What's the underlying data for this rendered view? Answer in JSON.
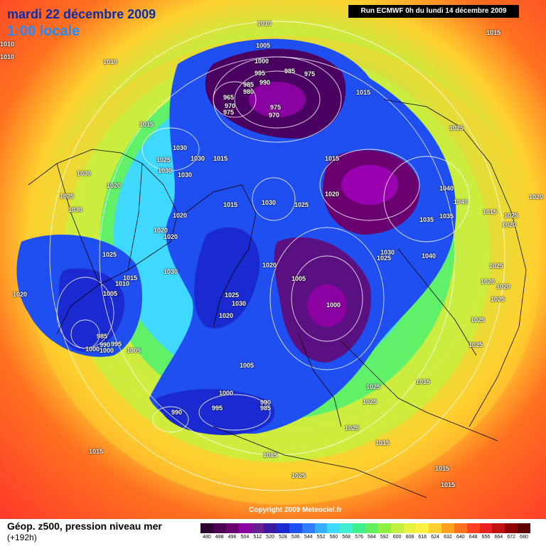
{
  "header": {
    "title_date": "mardi 22 décembre 2009",
    "title_time": "1:00 locale",
    "run_info": "Run ECMWF 0h du lundi 14 décembre 2009"
  },
  "footer": {
    "caption": "Géop. z500, pression niveau mer",
    "forecast_step": "(+192h)",
    "copyright": "Copyright 2009 Meteociel.fr"
  },
  "legend": {
    "ticks": [
      "480",
      "488",
      "496",
      "504",
      "512",
      "520",
      "528",
      "536",
      "544",
      "552",
      "560",
      "568",
      "576",
      "584",
      "592",
      "600",
      "608",
      "616",
      "624",
      "632",
      "640",
      "648",
      "656",
      "664",
      "672",
      "680"
    ],
    "colors": [
      "#2b0030",
      "#4a0050",
      "#6a0070",
      "#8a00a0",
      "#6a1e90",
      "#3a1aa0",
      "#1a2ad0",
      "#1f4ff0",
      "#2f7eff",
      "#34b0ff",
      "#3fd8ff",
      "#3ff0d0",
      "#3ff090",
      "#60f060",
      "#90f040",
      "#c0f040",
      "#e8f040",
      "#fff040",
      "#ffd030",
      "#ffa020",
      "#ff7020",
      "#ff4020",
      "#e82020",
      "#c01010",
      "#900000",
      "#600000"
    ]
  },
  "pressure_labels": [
    {
      "text": "1010"
    },
    {
      "text": "1010"
    },
    {
      "text": "1010"
    },
    {
      "text": "1015"
    },
    {
      "text": "1010"
    },
    {
      "text": "1005"
    },
    {
      "text": "1000"
    },
    {
      "text": "995"
    },
    {
      "text": "990"
    },
    {
      "text": "985"
    },
    {
      "text": "985"
    },
    {
      "text": "975"
    },
    {
      "text": "980"
    },
    {
      "text": "970"
    },
    {
      "text": "965"
    },
    {
      "text": "975"
    },
    {
      "text": "975"
    },
    {
      "text": "970"
    },
    {
      "text": "1015"
    },
    {
      "text": "1015"
    },
    {
      "text": "1025"
    },
    {
      "text": "1030"
    },
    {
      "text": "1030"
    },
    {
      "text": "1015"
    },
    {
      "text": "1025"
    },
    {
      "text": "1030"
    },
    {
      "text": "1030"
    },
    {
      "text": "1015"
    },
    {
      "text": "1020"
    },
    {
      "text": "1040"
    },
    {
      "text": "1030"
    },
    {
      "text": "1025"
    },
    {
      "text": "1030"
    },
    {
      "text": "1020"
    },
    {
      "text": "1015"
    },
    {
      "text": "1030"
    },
    {
      "text": "1025"
    },
    {
      "text": "1020"
    },
    {
      "text": "1040"
    },
    {
      "text": "1035"
    },
    {
      "text": "1015"
    },
    {
      "text": "1025"
    },
    {
      "text": "1020"
    },
    {
      "text": "1020"
    },
    {
      "text": "1020"
    },
    {
      "text": "1020"
    },
    {
      "text": "1035"
    },
    {
      "text": "1030"
    },
    {
      "text": "1025"
    },
    {
      "text": "1040"
    },
    {
      "text": "1025"
    },
    {
      "text": "1030"
    },
    {
      "text": "1005"
    },
    {
      "text": "1020"
    },
    {
      "text": "1020"
    },
    {
      "text": "1010"
    },
    {
      "text": "1015"
    },
    {
      "text": "1005"
    },
    {
      "text": "1025"
    },
    {
      "text": "1030"
    },
    {
      "text": "1020"
    },
    {
      "text": "1000"
    },
    {
      "text": "1025"
    },
    {
      "text": "1020"
    },
    {
      "text": "1020"
    },
    {
      "text": "1025"
    },
    {
      "text": "985"
    },
    {
      "text": "995"
    },
    {
      "text": "1000"
    },
    {
      "text": "1005"
    },
    {
      "text": "990"
    },
    {
      "text": "1000"
    },
    {
      "text": "1005"
    },
    {
      "text": "1025"
    },
    {
      "text": "1025"
    },
    {
      "text": "1015"
    },
    {
      "text": "1025"
    },
    {
      "text": "1000"
    },
    {
      "text": "990"
    },
    {
      "text": "995"
    },
    {
      "text": "985"
    },
    {
      "text": "990"
    },
    {
      "text": "1025"
    },
    {
      "text": "1015"
    },
    {
      "text": "1015"
    },
    {
      "text": "1025"
    },
    {
      "text": "1015"
    },
    {
      "text": "1025"
    },
    {
      "text": "1015"
    },
    {
      "text": "1015"
    }
  ]
}
